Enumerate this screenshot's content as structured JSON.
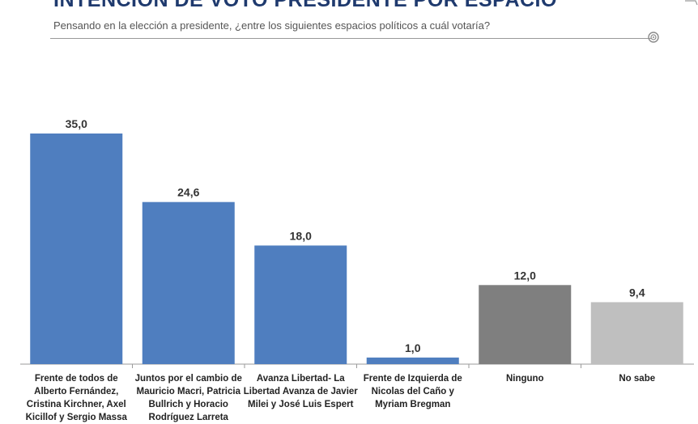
{
  "header": {
    "title": "INTENCIÓN DE VOTO PRESIDENTE POR ESPACIO",
    "subtitle": "Pensando en la elección a presidente, ¿entre los siguientes espacios políticos a cuál votaría?"
  },
  "chart_data": {
    "type": "bar",
    "title": "INTENCIÓN DE VOTO PRESIDENTE POR ESPACIO",
    "subtitle": "Pensando en la elección a presidente, ¿entre los siguientes espacios políticos a cuál votaría?",
    "xlabel": "",
    "ylabel": "",
    "ylim": [
      0,
      35
    ],
    "grid": false,
    "legend": "none",
    "categories": [
      [
        "Frente de todos de",
        "Alberto Fernández,",
        "Cristina Kirchner, Axel",
        "Kicillof y Sergio Massa"
      ],
      [
        "Juntos por el cambio de",
        "Mauricio Macri, Patricia",
        "Bullrich y Horacio",
        "Rodríguez Larreta"
      ],
      [
        "Avanza Libertad- La",
        "Libertad Avanza de Javier",
        "Milei y José Luis Espert"
      ],
      [
        "Frente de Izquierda de",
        "Nicolas del Caño y",
        "Myriam Bregman"
      ],
      [
        "Ninguno"
      ],
      [
        "No sabe"
      ]
    ],
    "values": [
      35.0,
      24.6,
      18.0,
      1.0,
      12.0,
      9.4
    ],
    "value_labels": [
      "35,0",
      "24,6",
      "18,0",
      "1,0",
      "12,0",
      "9,4"
    ],
    "colors": [
      "#4f7ebf",
      "#4f7ebf",
      "#4f7ebf",
      "#4f7ebf",
      "#7f7f7f",
      "#bfbfbf"
    ]
  }
}
